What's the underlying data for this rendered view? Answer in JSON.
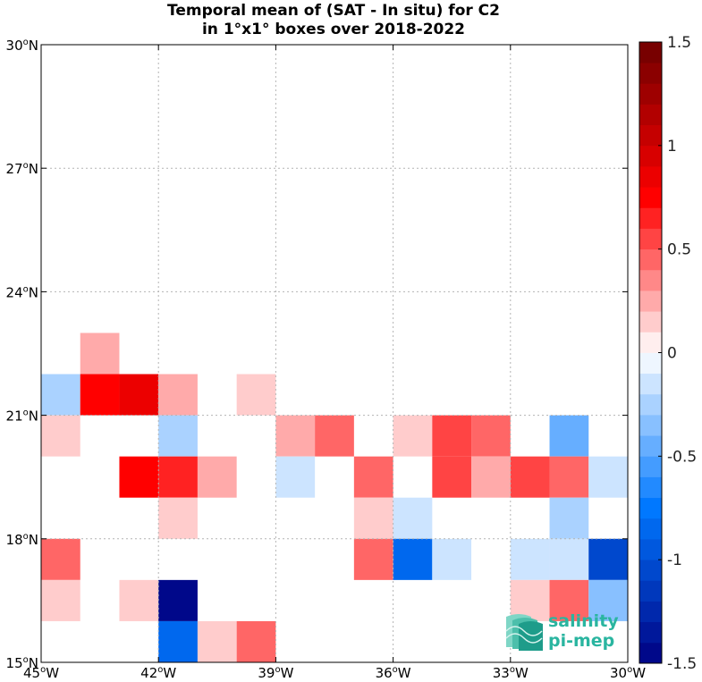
{
  "chart_data": {
    "type": "heatmap",
    "title_lines": [
      "Temporal mean of (SAT - In situ) for C2",
      "in 1°x1° boxes over 2018-2022"
    ],
    "x_range": [
      -45,
      -30
    ],
    "y_range": [
      15,
      30
    ],
    "x_ticks": [
      {
        "value": -45,
        "deg": "45",
        "hemi": "W"
      },
      {
        "value": -42,
        "deg": "42",
        "hemi": "W"
      },
      {
        "value": -39,
        "deg": "39",
        "hemi": "W"
      },
      {
        "value": -36,
        "deg": "36",
        "hemi": "W"
      },
      {
        "value": -33,
        "deg": "33",
        "hemi": "W"
      },
      {
        "value": -30,
        "deg": "30",
        "hemi": "W"
      }
    ],
    "y_ticks": [
      {
        "value": 15,
        "deg": "15",
        "hemi": "N"
      },
      {
        "value": 18,
        "deg": "18",
        "hemi": "N"
      },
      {
        "value": 21,
        "deg": "21",
        "hemi": "N"
      },
      {
        "value": 24,
        "deg": "24",
        "hemi": "N"
      },
      {
        "value": 27,
        "deg": "27",
        "hemi": "N"
      },
      {
        "value": 30,
        "deg": "30",
        "hemi": "N"
      }
    ],
    "grid": true,
    "colorbar": {
      "range": [
        -1.5,
        1.5
      ],
      "levels": 30,
      "ticks": [
        {
          "value": 1.5,
          "label": "1.5"
        },
        {
          "value": 1.0,
          "label": "1"
        },
        {
          "value": 0.5,
          "label": "0.5"
        },
        {
          "value": 0.0,
          "label": "0"
        },
        {
          "value": -0.5,
          "label": "-0.5"
        },
        {
          "value": -1.0,
          "label": "-1"
        },
        {
          "value": -1.5,
          "label": "-1.5"
        }
      ],
      "colormap": "blue-white-red"
    },
    "cells": [
      {
        "lon": -45,
        "lat": 21,
        "value": -0.25
      },
      {
        "lon": -44,
        "lat": 22,
        "value": 0.25
      },
      {
        "lon": -44,
        "lat": 21,
        "value": 0.75
      },
      {
        "lon": -43,
        "lat": 21,
        "value": 0.85
      },
      {
        "lon": -42,
        "lat": 21,
        "value": 0.25
      },
      {
        "lon": -40,
        "lat": 21,
        "value": 0.15
      },
      {
        "lon": -45,
        "lat": 20,
        "value": 0.15
      },
      {
        "lon": -42,
        "lat": 20,
        "value": -0.25
      },
      {
        "lon": -39,
        "lat": 20,
        "value": 0.25
      },
      {
        "lon": -38,
        "lat": 20,
        "value": 0.45
      },
      {
        "lon": -36,
        "lat": 20,
        "value": 0.15
      },
      {
        "lon": -35,
        "lat": 20,
        "value": 0.55
      },
      {
        "lon": -34,
        "lat": 20,
        "value": 0.45
      },
      {
        "lon": -32,
        "lat": 20,
        "value": -0.45
      },
      {
        "lon": -43,
        "lat": 19,
        "value": 0.75
      },
      {
        "lon": -42,
        "lat": 19,
        "value": 0.65
      },
      {
        "lon": -41,
        "lat": 19,
        "value": 0.25
      },
      {
        "lon": -39,
        "lat": 19,
        "value": -0.15
      },
      {
        "lon": -37,
        "lat": 19,
        "value": 0.45
      },
      {
        "lon": -35,
        "lat": 19,
        "value": 0.55
      },
      {
        "lon": -34,
        "lat": 19,
        "value": 0.25
      },
      {
        "lon": -33,
        "lat": 19,
        "value": 0.55
      },
      {
        "lon": -32,
        "lat": 19,
        "value": 0.45
      },
      {
        "lon": -31,
        "lat": 19,
        "value": -0.15
      },
      {
        "lon": -42,
        "lat": 18,
        "value": 0.15
      },
      {
        "lon": -37,
        "lat": 18,
        "value": 0.15
      },
      {
        "lon": -36,
        "lat": 18,
        "value": -0.15
      },
      {
        "lon": -32,
        "lat": 18,
        "value": -0.25
      },
      {
        "lon": -45,
        "lat": 17,
        "value": 0.45
      },
      {
        "lon": -37,
        "lat": 17,
        "value": 0.45
      },
      {
        "lon": -36,
        "lat": 17,
        "value": -0.85
      },
      {
        "lon": -35,
        "lat": 17,
        "value": -0.15
      },
      {
        "lon": -33,
        "lat": 17,
        "value": -0.15
      },
      {
        "lon": -32,
        "lat": 17,
        "value": -0.15
      },
      {
        "lon": -31,
        "lat": 17,
        "value": -1.05
      },
      {
        "lon": -45,
        "lat": 16,
        "value": 0.15
      },
      {
        "lon": -43,
        "lat": 16,
        "value": 0.15
      },
      {
        "lon": -42,
        "lat": 16,
        "value": -1.45
      },
      {
        "lon": -33,
        "lat": 16,
        "value": 0.15
      },
      {
        "lon": -32,
        "lat": 16,
        "value": 0.45
      },
      {
        "lon": -31,
        "lat": 16,
        "value": -0.35
      },
      {
        "lon": -42,
        "lat": 15,
        "value": -0.85
      },
      {
        "lon": -41,
        "lat": 15,
        "value": 0.15
      },
      {
        "lon": -40,
        "lat": 15,
        "value": 0.45
      }
    ]
  },
  "logo": {
    "line1": "salinity",
    "line2": "pi-mep",
    "color": "#2ab5a0"
  }
}
